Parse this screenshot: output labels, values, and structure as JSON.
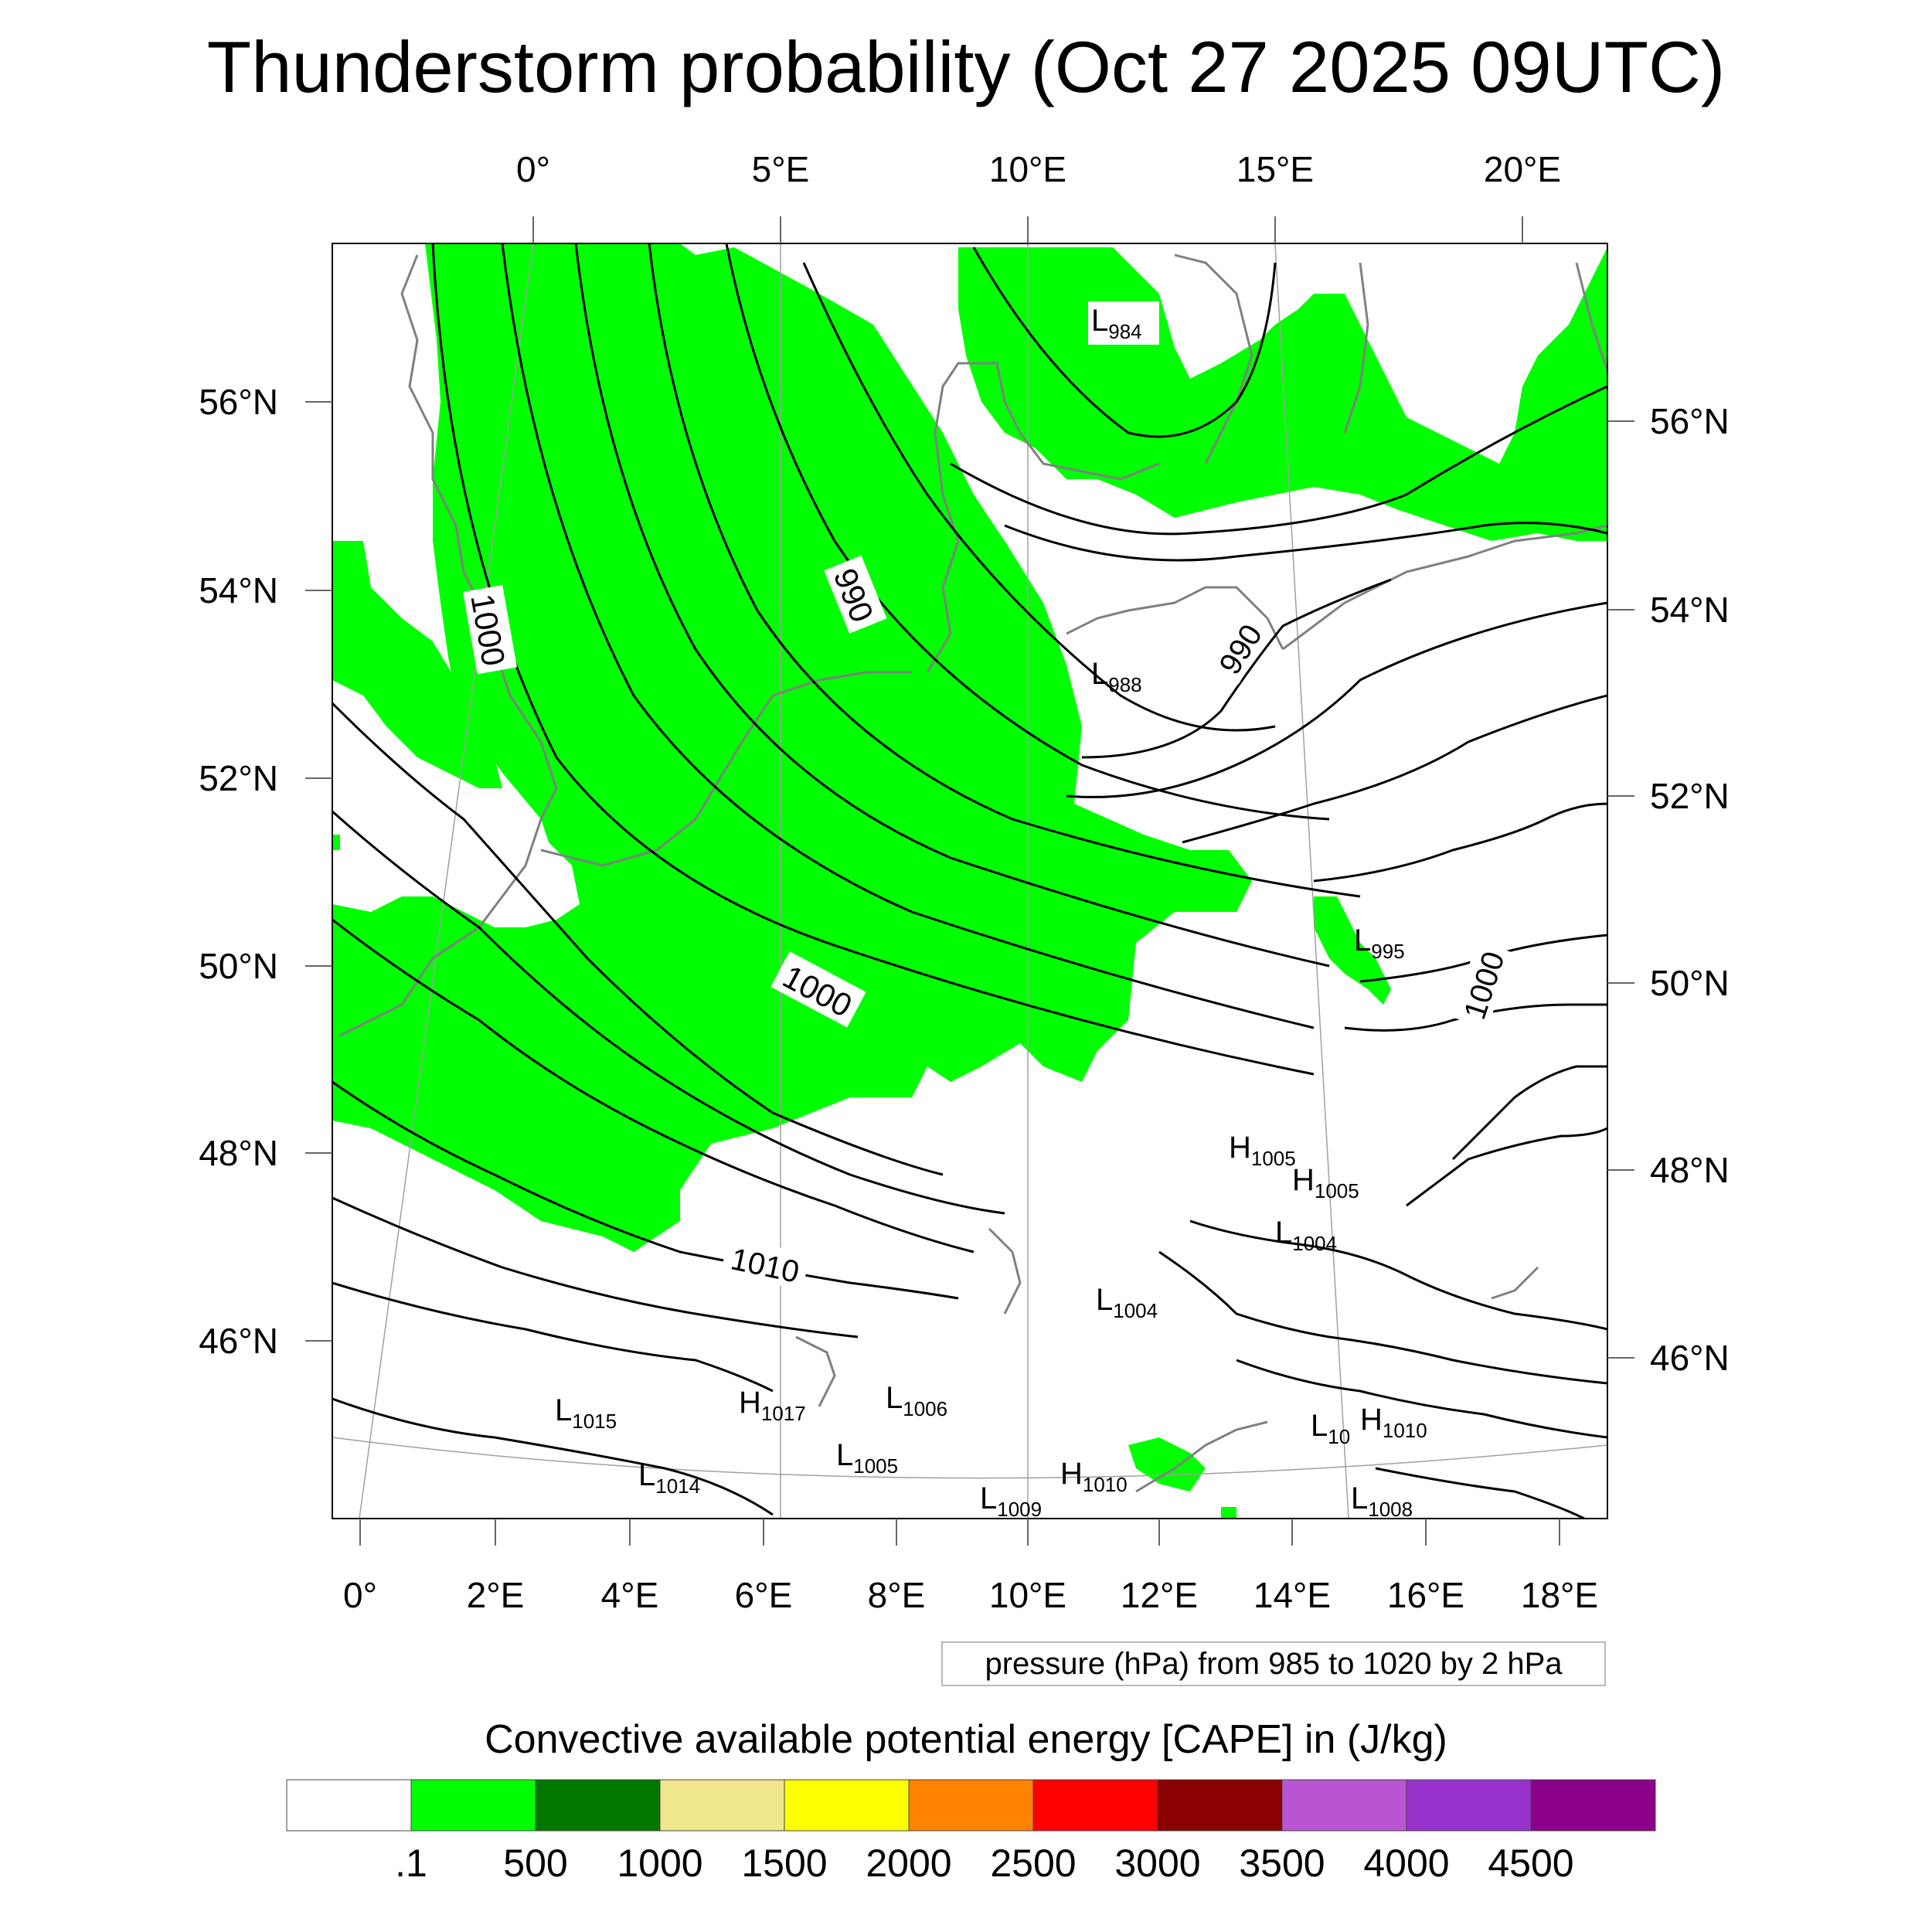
{
  "title": "Thunderstorm probability (Oct 27 2025 09UTC)",
  "map": {
    "top_lon_labels": [
      "0°",
      "5°E",
      "10°E",
      "15°E",
      "20°E"
    ],
    "bottom_lon_labels": [
      "0°",
      "2°E",
      "4°E",
      "6°E",
      "8°E",
      "10°E",
      "12°E",
      "14°E",
      "16°E",
      "18°E"
    ],
    "left_lat_labels": [
      "56°N",
      "54°N",
      "52°N",
      "50°N",
      "48°N",
      "46°N"
    ],
    "right_lat_labels": [
      "56°N",
      "54°N",
      "52°N",
      "50°N",
      "48°N",
      "46°N"
    ],
    "contour_labels": [
      "1000",
      "990",
      "990",
      "1000",
      "1000",
      "1010"
    ],
    "pressure_centers": [
      {
        "type": "L",
        "value": "984"
      },
      {
        "type": "L",
        "value": "988"
      },
      {
        "type": "L",
        "value": "995"
      },
      {
        "type": "H",
        "value": "1005"
      },
      {
        "type": "H",
        "value": "1005"
      },
      {
        "type": "L",
        "value": "1004"
      },
      {
        "type": "L",
        "value": "1004"
      },
      {
        "type": "L",
        "value": "1015"
      },
      {
        "type": "H",
        "value": "1017"
      },
      {
        "type": "L",
        "value": "1006"
      },
      {
        "type": "L",
        "value": "1005"
      },
      {
        "type": "L",
        "value": "1014"
      },
      {
        "type": "L",
        "value": "1009"
      },
      {
        "type": "H",
        "value": "1010"
      },
      {
        "type": "L",
        "value": "10"
      },
      {
        "type": "H",
        "value": "1010"
      },
      {
        "type": "L",
        "value": "1008"
      }
    ],
    "colors": {
      "cape_fill": "#00ff00",
      "isobar": "#000000",
      "coastline": "#808080",
      "graticule": "#a0a0a0"
    }
  },
  "pressure_note": "pressure (hPa) from 985 to 1020 by 2 hPa",
  "legend": {
    "title": "Convective available potential energy [CAPE] in (J/kg)",
    "colors": [
      "#ffffff",
      "#00ff00",
      "#007800",
      "#f0e68c",
      "#ffff00",
      "#ff8200",
      "#ff0000",
      "#8b0000",
      "#b955d3",
      "#9932cc",
      "#8b008b"
    ],
    "labels": [
      ".1",
      "500",
      "1000",
      "1500",
      "2000",
      "2500",
      "3000",
      "3500",
      "4000",
      "4500"
    ]
  }
}
